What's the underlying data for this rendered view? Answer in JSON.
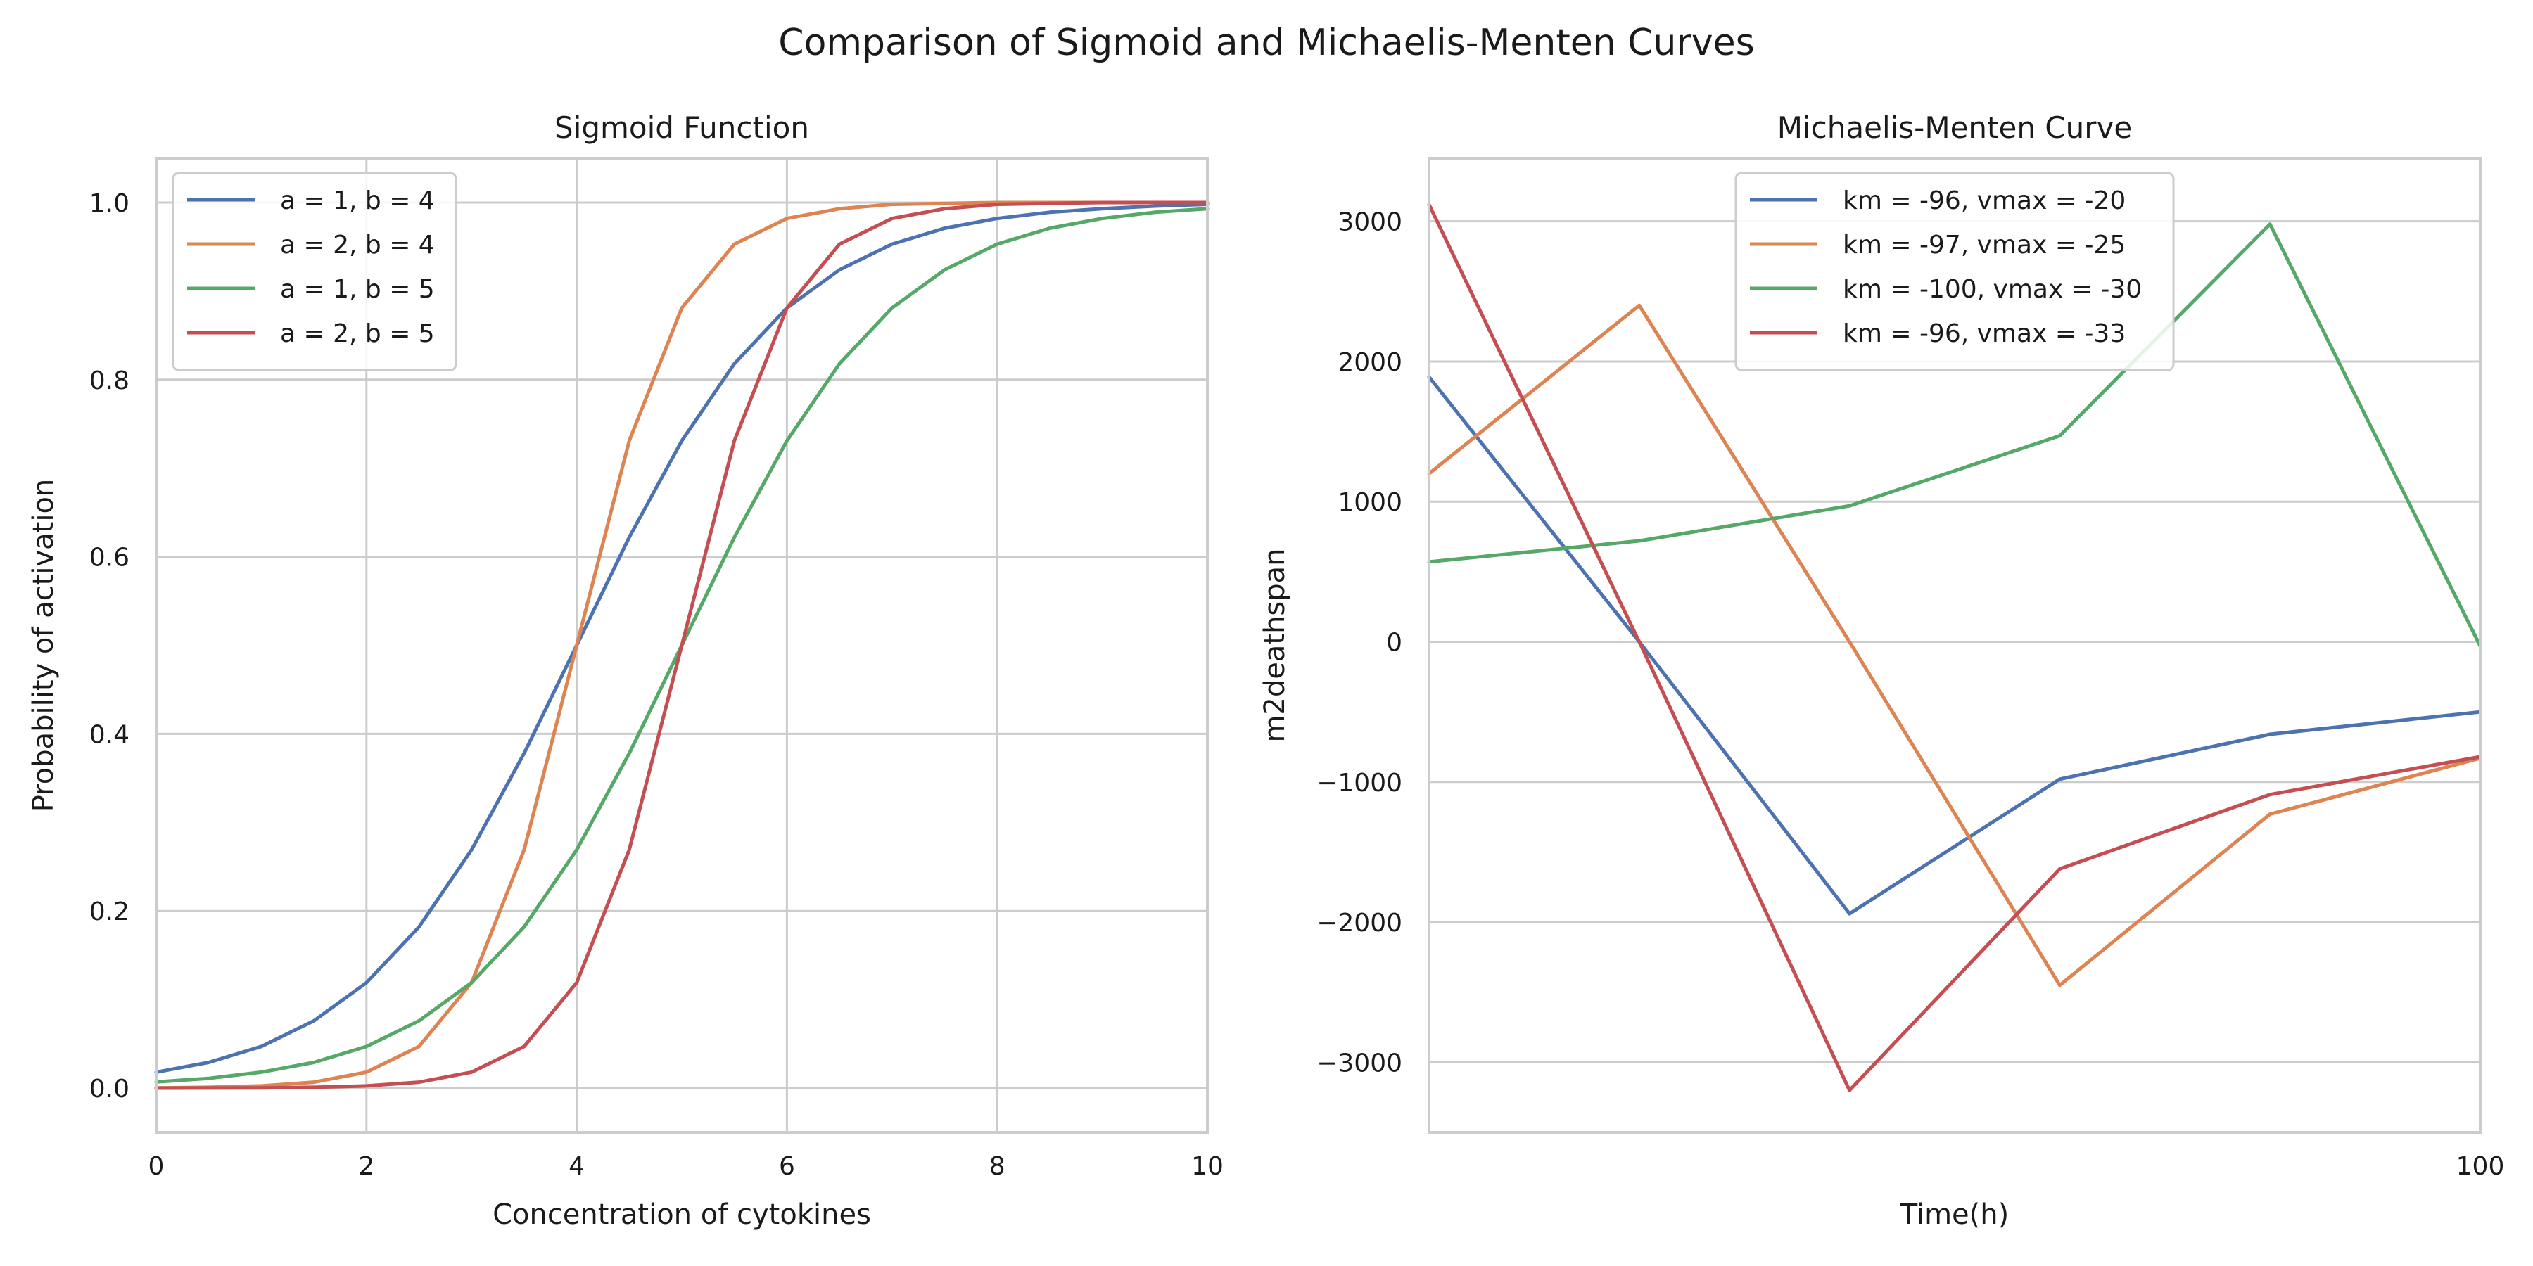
{
  "suptitle": "Comparison of Sigmoid and Michaelis-Menten Curves",
  "chart_data": [
    {
      "type": "line",
      "title": "Sigmoid Function",
      "xlabel": "Concentration of cytokines",
      "ylabel": "Probability of activation",
      "xlim": [
        0,
        10
      ],
      "ylim": [
        -0.05,
        1.05
      ],
      "xticks": [
        0,
        2,
        4,
        6,
        8,
        10
      ],
      "xtick_labels": [
        "0",
        "2",
        "4",
        "6",
        "8",
        "10"
      ],
      "yticks": [
        0.0,
        0.2,
        0.4,
        0.6,
        0.8,
        1.0
      ],
      "ytick_labels": [
        "0.0",
        "0.2",
        "0.4",
        "0.6",
        "0.8",
        "1.0"
      ],
      "grid": true,
      "legend_position": "top-left",
      "x": [
        0,
        0.5,
        1,
        1.5,
        2,
        2.5,
        3,
        3.5,
        4,
        4.5,
        5,
        5.5,
        6,
        6.5,
        7,
        7.5,
        8,
        8.5,
        9,
        9.5,
        10
      ],
      "series": [
        {
          "name": "a = 1, b = 4",
          "color": "#4c72b0",
          "values": [
            0.018,
            0.029,
            0.047,
            0.076,
            0.119,
            0.182,
            0.269,
            0.378,
            0.5,
            0.622,
            0.731,
            0.818,
            0.881,
            0.924,
            0.953,
            0.971,
            0.982,
            0.989,
            0.993,
            0.996,
            0.998
          ]
        },
        {
          "name": "a = 2, b = 4",
          "color": "#dd8452",
          "values": [
            0.0003,
            0.0009,
            0.0025,
            0.0067,
            0.018,
            0.047,
            0.119,
            0.269,
            0.5,
            0.731,
            0.881,
            0.953,
            0.982,
            0.993,
            0.998,
            0.999,
            1.0,
            1.0,
            1.0,
            1.0,
            1.0
          ]
        },
        {
          "name": "a = 1, b = 5",
          "color": "#55a868",
          "values": [
            0.007,
            0.011,
            0.018,
            0.029,
            0.047,
            0.076,
            0.119,
            0.182,
            0.269,
            0.378,
            0.5,
            0.622,
            0.731,
            0.818,
            0.881,
            0.924,
            0.953,
            0.971,
            0.982,
            0.989,
            0.993
          ]
        },
        {
          "name": "a = 2, b = 5",
          "color": "#c44e52",
          "values": [
            5e-05,
            0.0001,
            0.0003,
            0.0009,
            0.0025,
            0.0067,
            0.018,
            0.047,
            0.119,
            0.269,
            0.5,
            0.731,
            0.881,
            0.953,
            0.982,
            0.993,
            0.998,
            0.999,
            1.0,
            1.0,
            1.0
          ]
        }
      ]
    },
    {
      "type": "line",
      "title": "Michaelis-Menten Curve",
      "xlabel": "Time(h)",
      "ylabel": "m2deathspan",
      "xlim": [
        0,
        100
      ],
      "ylim": [
        -3500,
        3450
      ],
      "xticks": [
        100
      ],
      "xtick_labels": [
        "100"
      ],
      "yticks": [
        -3000,
        -2000,
        -1000,
        0,
        1000,
        2000,
        3000
      ],
      "ytick_labels": [
        "−3000",
        "−2000",
        "−1000",
        "0",
        "1000",
        "2000",
        "3000"
      ],
      "grid": true,
      "legend_position": "top-center",
      "x": [
        0,
        20,
        40,
        60,
        80,
        100
      ],
      "series": [
        {
          "name": "km = -96, vmax = -20",
          "color": "#4c72b0",
          "values": [
            1890,
            0,
            -1940,
            -980,
            -660,
            -500
          ]
        },
        {
          "name": "km = -97, vmax = -25",
          "color": "#dd8452",
          "values": [
            1200,
            2400,
            0,
            -2450,
            -1230,
            -830
          ]
        },
        {
          "name": "km = -100, vmax = -30",
          "color": "#55a868",
          "values": [
            570,
            720,
            970,
            1470,
            2980,
            -30
          ]
        },
        {
          "name": "km = -96, vmax = -33",
          "color": "#c44e52",
          "values": [
            3120,
            0,
            -3200,
            -1620,
            -1090,
            -820
          ]
        }
      ]
    }
  ]
}
